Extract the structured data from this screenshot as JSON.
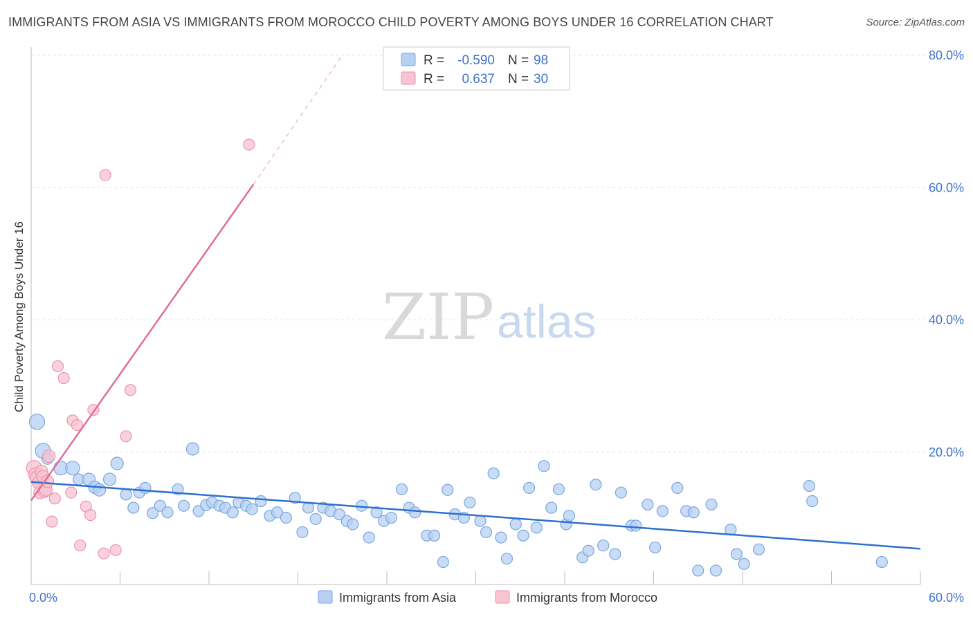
{
  "title": "IMMIGRANTS FROM ASIA VS IMMIGRANTS FROM MOROCCO CHILD POVERTY AMONG BOYS UNDER 16 CORRELATION CHART",
  "source": "Source: ZipAtlas.com",
  "watermark": {
    "zip": "ZIP",
    "atlas": "atlas"
  },
  "legend": {
    "rows": [
      {
        "r_label": "R =",
        "r_value": "-0.590",
        "n_label": "N =",
        "n_value": "98",
        "color": "#b6d0f3",
        "stroke": "#7aa6e0"
      },
      {
        "r_label": "R =",
        "r_value": "0.637",
        "n_label": "N =",
        "n_value": "30",
        "color": "#f8c3d2",
        "stroke": "#ee93ad"
      }
    ]
  },
  "bottom_legend": [
    "Immigrants from Asia",
    "Immigrants from Morocco"
  ],
  "chart_data": {
    "type": "scatter",
    "title": "IMMIGRANTS FROM ASIA VS IMMIGRANTS FROM MOROCCO CHILD POVERTY AMONG BOYS UNDER 16 CORRELATION CHART",
    "xlabel": "",
    "ylabel": "Child Poverty Among Boys Under 16",
    "xlim": [
      0,
      60
    ],
    "ylim": [
      0,
      80
    ],
    "x_tick_labels": [
      {
        "value": 0,
        "label": "0.0%"
      },
      {
        "value": 60,
        "label": "60.0%"
      }
    ],
    "y_tick_labels": [
      {
        "value": 20,
        "label": "20.0%"
      },
      {
        "value": 40,
        "label": "40.0%"
      },
      {
        "value": 60,
        "label": "60.0%"
      },
      {
        "value": 80,
        "label": "80.0%"
      }
    ],
    "grid": true,
    "legend_position": "top-center",
    "series": [
      {
        "name": "Immigrants from Asia",
        "color": "#7aa6e0",
        "fill": "#b6d0f3",
        "trend": {
          "x": [
            0,
            60
          ],
          "y": [
            15.5,
            5.4
          ],
          "color": "#2f6fce"
        },
        "points": [
          [
            0.4,
            24.6,
            11
          ],
          [
            0.8,
            20.2,
            11
          ],
          [
            1.1,
            19.0,
            8
          ],
          [
            2.0,
            17.6,
            10
          ],
          [
            2.8,
            17.6,
            10
          ],
          [
            3.2,
            15.9,
            8
          ],
          [
            3.9,
            15.9,
            9
          ],
          [
            4.3,
            14.7,
            9
          ],
          [
            4.6,
            14.3,
            9
          ],
          [
            5.3,
            15.9,
            9
          ],
          [
            5.8,
            18.3,
            9
          ],
          [
            6.4,
            13.6,
            8
          ],
          [
            6.9,
            11.6,
            8
          ],
          [
            7.3,
            13.9,
            8
          ],
          [
            7.7,
            14.6,
            8
          ],
          [
            8.2,
            10.8,
            8
          ],
          [
            8.7,
            11.9,
            8
          ],
          [
            9.2,
            10.9,
            8
          ],
          [
            9.9,
            14.4,
            8
          ],
          [
            10.3,
            11.9,
            8
          ],
          [
            10.9,
            20.5,
            9
          ],
          [
            11.3,
            11.1,
            8
          ],
          [
            11.8,
            12.0,
            8
          ],
          [
            12.2,
            12.4,
            8
          ],
          [
            12.7,
            11.9,
            8
          ],
          [
            13.1,
            11.6,
            8
          ],
          [
            13.6,
            10.9,
            8
          ],
          [
            14.0,
            12.4,
            8
          ],
          [
            14.5,
            11.9,
            8
          ],
          [
            14.9,
            11.4,
            8
          ],
          [
            15.5,
            12.6,
            8
          ],
          [
            16.1,
            10.4,
            8
          ],
          [
            16.6,
            10.9,
            8
          ],
          [
            17.2,
            10.1,
            8
          ],
          [
            17.8,
            13.1,
            8
          ],
          [
            18.3,
            7.9,
            8
          ],
          [
            18.7,
            11.6,
            8
          ],
          [
            19.2,
            9.9,
            8
          ],
          [
            19.7,
            11.6,
            8
          ],
          [
            20.2,
            11.1,
            8
          ],
          [
            20.8,
            10.6,
            8
          ],
          [
            21.3,
            9.6,
            8
          ],
          [
            21.7,
            9.1,
            8
          ],
          [
            22.3,
            11.9,
            8
          ],
          [
            22.8,
            7.1,
            8
          ],
          [
            23.3,
            10.9,
            8
          ],
          [
            23.8,
            9.6,
            8
          ],
          [
            24.3,
            10.1,
            8
          ],
          [
            25.0,
            14.4,
            8
          ],
          [
            25.5,
            11.6,
            8
          ],
          [
            25.9,
            10.9,
            8
          ],
          [
            26.7,
            7.4,
            8
          ],
          [
            27.2,
            7.4,
            8
          ],
          [
            27.8,
            3.4,
            8
          ],
          [
            28.1,
            14.3,
            8
          ],
          [
            28.6,
            10.6,
            8
          ],
          [
            29.2,
            10.1,
            8
          ],
          [
            29.6,
            12.4,
            8
          ],
          [
            30.3,
            9.6,
            8
          ],
          [
            30.7,
            7.9,
            8
          ],
          [
            31.2,
            16.8,
            8
          ],
          [
            31.7,
            7.1,
            8
          ],
          [
            32.1,
            3.9,
            8
          ],
          [
            32.7,
            9.1,
            8
          ],
          [
            33.2,
            7.4,
            8
          ],
          [
            33.6,
            14.6,
            8
          ],
          [
            34.1,
            8.6,
            8
          ],
          [
            34.6,
            17.9,
            8
          ],
          [
            35.1,
            11.6,
            8
          ],
          [
            35.6,
            14.4,
            8
          ],
          [
            36.1,
            9.1,
            8
          ],
          [
            36.3,
            10.4,
            8
          ],
          [
            37.2,
            4.1,
            8
          ],
          [
            37.6,
            5.1,
            8
          ],
          [
            38.1,
            15.1,
            8
          ],
          [
            38.6,
            5.9,
            8
          ],
          [
            39.4,
            4.6,
            8
          ],
          [
            39.8,
            13.9,
            8
          ],
          [
            40.5,
            8.9,
            8
          ],
          [
            40.8,
            8.9,
            8
          ],
          [
            41.6,
            12.1,
            8
          ],
          [
            42.1,
            5.6,
            8
          ],
          [
            42.6,
            11.1,
            8
          ],
          [
            43.6,
            14.6,
            8
          ],
          [
            44.2,
            11.1,
            8
          ],
          [
            44.7,
            10.9,
            8
          ],
          [
            45.0,
            2.1,
            8
          ],
          [
            45.9,
            12.1,
            8
          ],
          [
            46.2,
            2.1,
            8
          ],
          [
            47.2,
            8.3,
            8
          ],
          [
            47.6,
            4.6,
            8
          ],
          [
            48.1,
            3.1,
            8
          ],
          [
            49.1,
            5.3,
            8
          ],
          [
            52.5,
            14.9,
            8
          ],
          [
            52.7,
            12.6,
            8
          ],
          [
            57.4,
            3.4,
            8
          ]
        ]
      },
      {
        "name": "Immigrants from Morocco",
        "color": "#ee93ad",
        "fill": "#f8c3d2",
        "trend": {
          "x": [
            0,
            15
          ],
          "y": [
            12.7,
            60.5
          ],
          "dashed_to": {
            "x": 21,
            "y": 80
          },
          "color": "#e06d96"
        },
        "points": [
          [
            0.2,
            17.6,
            11
          ],
          [
            0.3,
            16.6,
            10
          ],
          [
            0.4,
            16.1,
            10
          ],
          [
            0.5,
            15.4,
            9
          ],
          [
            0.6,
            13.9,
            9
          ],
          [
            0.7,
            17.1,
            9
          ],
          [
            0.8,
            16.3,
            9
          ],
          [
            0.9,
            14.1,
            9
          ],
          [
            1.0,
            14.3,
            9
          ],
          [
            1.1,
            15.6,
            9
          ],
          [
            1.2,
            19.4,
            9
          ],
          [
            1.4,
            9.5,
            8
          ],
          [
            1.6,
            13.0,
            8
          ],
          [
            1.8,
            33.0,
            8
          ],
          [
            2.2,
            31.2,
            8
          ],
          [
            2.7,
            13.9,
            8
          ],
          [
            2.8,
            24.8,
            8
          ],
          [
            3.1,
            24.1,
            8
          ],
          [
            3.3,
            5.9,
            8
          ],
          [
            3.7,
            11.8,
            8
          ],
          [
            4.0,
            10.5,
            8
          ],
          [
            4.2,
            26.4,
            8
          ],
          [
            4.9,
            4.7,
            8
          ],
          [
            5.0,
            61.9,
            8
          ],
          [
            5.7,
            5.2,
            8
          ],
          [
            6.4,
            22.4,
            8
          ],
          [
            6.7,
            29.4,
            8
          ],
          [
            14.7,
            66.5,
            8
          ]
        ]
      }
    ]
  }
}
